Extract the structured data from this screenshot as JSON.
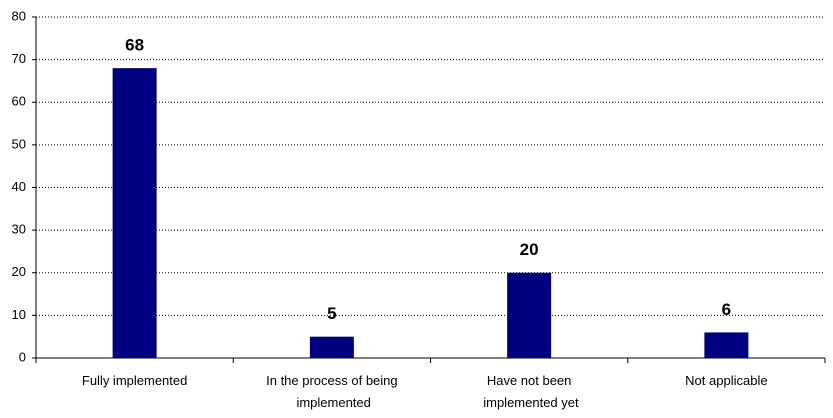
{
  "chart_data": {
    "type": "bar",
    "categories": [
      "Fully implemented",
      "In the process of being implemented",
      "Have not been implemented yet",
      "Not applicable"
    ],
    "values": [
      68,
      5,
      20,
      6
    ],
    "color": "#000080",
    "ylim": [
      0,
      80
    ],
    "yticks": [
      0,
      10,
      20,
      30,
      40,
      50,
      60,
      70,
      80
    ],
    "grid": true
  }
}
